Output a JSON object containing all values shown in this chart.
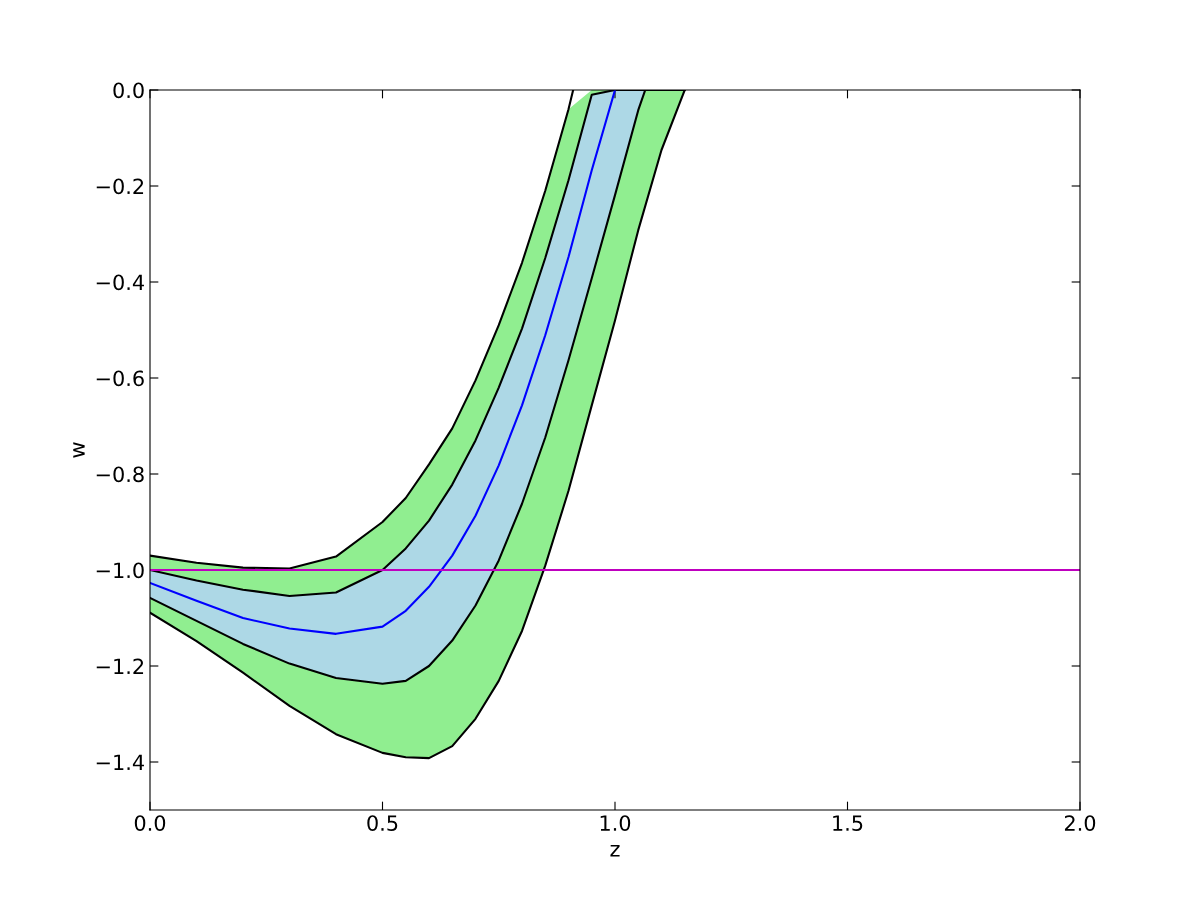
{
  "chart_data": {
    "type": "line",
    "xlabel": "z",
    "ylabel": "w",
    "xlim": [
      0.0,
      2.0
    ],
    "xticks": [
      {
        "value": 0,
        "label": "0.0"
      },
      {
        "value": 0.5,
        "label": "0.5"
      },
      {
        "value": 1,
        "label": "1.0"
      },
      {
        "value": 1.5,
        "label": "1.5"
      },
      {
        "value": 2,
        "label": "2.0"
      }
    ],
    "ylim": [
      -1.5,
      0.0
    ],
    "yticks": [
      {
        "value": -1.4,
        "label": "−1.4"
      },
      {
        "value": -1.2,
        "label": "−1.2"
      },
      {
        "value": -1.0,
        "label": "−1.0"
      },
      {
        "value": -0.8,
        "label": "−0.8"
      },
      {
        "value": -0.6,
        "label": "−0.6"
      },
      {
        "value": -0.4,
        "label": "−0.4"
      },
      {
        "value": -0.2,
        "label": "−0.2"
      },
      {
        "value": 0.0,
        "label": "0.0"
      }
    ],
    "grid": false,
    "series": [
      {
        "color": "#000000",
        "x": [
          0,
          0.1,
          0.2,
          0.3,
          0.4,
          0.5,
          0.55,
          0.6,
          0.65,
          0.7,
          0.75,
          0.8,
          0.85,
          0.9,
          0.95,
          1.0,
          1.05,
          1.1,
          1.15
        ],
        "values": [
          -1.0,
          -1.022,
          -1.041,
          -1.054,
          -1.047,
          -1.0,
          -0.955,
          -0.897,
          -0.822,
          -0.73,
          -0.62,
          -0.497,
          -0.35,
          -0.188,
          -0.01,
          0,
          0,
          0,
          0
        ],
        "upper": [
          -0.97,
          -0.985,
          -0.995,
          -0.997,
          -0.972,
          -0.9,
          -0.85,
          -0.78,
          -0.705,
          -0.605,
          -0.49,
          -0.36,
          -0.21,
          -0.04,
          0,
          0,
          0,
          0,
          0
        ],
        "lower": [
          -1.089,
          -1.148,
          -1.214,
          -1.283,
          -1.342,
          -1.381,
          -1.39,
          -1.392,
          -1.367,
          -1.31,
          -1.231,
          -1.127,
          -0.991,
          -0.835,
          -0.657,
          -0.48,
          -0.292,
          -0.125,
          0
        ]
      },
      {
        "color": "#000000",
        "x": [
          0,
          0.1,
          0.2,
          0.3,
          0.4,
          0.5,
          0.55,
          0.6,
          0.65,
          0.7,
          0.75,
          0.8,
          0.85,
          0.9,
          0.91
        ],
        "values": [
          -0.97,
          -0.985,
          -0.995,
          -0.997,
          -0.972,
          -0.9,
          -0.85,
          -0.78,
          -0.705,
          -0.605,
          -0.49,
          -0.36,
          -0.21,
          -0.04,
          0
        ]
      },
      {
        "color": "#000000",
        "x": [
          0,
          0.1,
          0.2,
          0.3,
          0.4,
          0.5,
          0.55,
          0.6,
          0.65,
          0.7,
          0.75,
          0.8,
          0.85,
          0.9,
          0.95,
          1.0,
          1.05,
          1.1,
          1.15
        ],
        "values": [
          -1.089,
          -1.148,
          -1.214,
          -1.283,
          -1.342,
          -1.381,
          -1.39,
          -1.392,
          -1.367,
          -1.31,
          -1.231,
          -1.127,
          -0.991,
          -0.835,
          -0.657,
          -0.48,
          -0.292,
          -0.125,
          0
        ]
      },
      {
        "color": "#000000",
        "x": [
          0,
          0.1,
          0.2,
          0.3,
          0.4,
          0.5,
          0.55,
          0.6,
          0.65,
          0.7,
          0.75,
          0.8,
          0.85,
          0.9,
          0.95,
          1.0,
          1.05,
          1.065
        ],
        "values": [
          -1.058,
          -1.106,
          -1.154,
          -1.195,
          -1.225,
          -1.237,
          -1.231,
          -1.2,
          -1.147,
          -1.074,
          -0.98,
          -0.862,
          -0.724,
          -0.563,
          -0.392,
          -0.219,
          -0.042,
          0
        ]
      },
      {
        "color": "#0000ff",
        "x": [
          0,
          0.1,
          0.2,
          0.3,
          0.4,
          0.5,
          0.55,
          0.6,
          0.65,
          0.7,
          0.75,
          0.8,
          0.85,
          0.9,
          0.95,
          1.0,
          1.05,
          1.065
        ],
        "values": [
          -1.027,
          -1.064,
          -1.1,
          -1.122,
          -1.133,
          -1.118,
          -1.085,
          -1.035,
          -0.97,
          -0.887,
          -0.782,
          -0.657,
          -0.511,
          -0.348,
          -0.167,
          0,
          null,
          null
        ],
        "upper": [
          -1.0,
          -1.022,
          -1.041,
          -1.054,
          -1.047,
          -1.0,
          -0.955,
          -0.897,
          -0.822,
          -0.73,
          -0.62,
          -0.497,
          -0.35,
          -0.188,
          -0.01,
          0,
          0,
          0
        ],
        "lower": [
          -1.058,
          -1.106,
          -1.154,
          -1.195,
          -1.225,
          -1.237,
          -1.231,
          -1.2,
          -1.147,
          -1.074,
          -0.98,
          -0.862,
          -0.724,
          -0.563,
          -0.392,
          -0.219,
          -0.042,
          0
        ]
      }
    ],
    "ref_lines": [
      {
        "axis": "y",
        "value": -1.0,
        "color": "#bf00bf"
      }
    ]
  }
}
